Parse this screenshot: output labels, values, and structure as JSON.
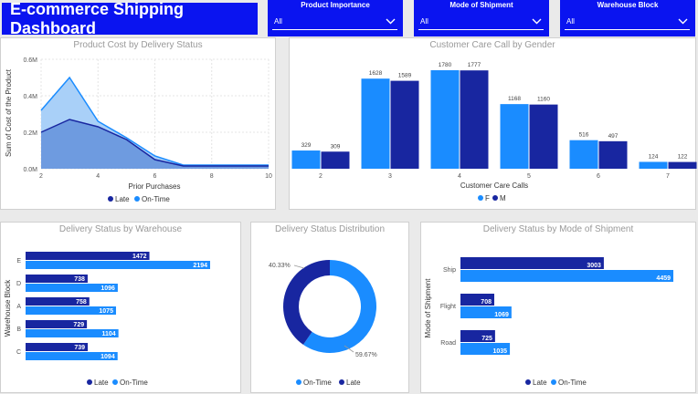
{
  "header": {
    "title": "E-commerce Shipping Dashboard"
  },
  "filters": [
    {
      "label": "Product Importance",
      "value": "All"
    },
    {
      "label": "Mode of Shipment",
      "value": "All"
    },
    {
      "label": "Warehouse Block",
      "value": "All"
    }
  ],
  "colors": {
    "late": "#1826a0",
    "on_time": "#1a8cff",
    "area_on_time": "#a9d0f8",
    "area_late": "#6e9be0"
  },
  "charts": {
    "cost": {
      "title": "Product Cost by Delivery Status",
      "xlabel": "Prior Purchases",
      "ylabel": "Sum of Cost of the Product",
      "legend": [
        "Late",
        "On-Time"
      ]
    },
    "care": {
      "title": "Customer Care Call by Gender",
      "xlabel": "Customer Care Calls",
      "legend": [
        "F",
        "M"
      ]
    },
    "warehouse": {
      "title": "Delivery Status by Warehouse",
      "ylabel": "Warehouse Block",
      "legend": [
        "Late",
        "On-Time"
      ]
    },
    "donut": {
      "title": "Delivery Status Distribution",
      "legend": [
        "On-Time",
        "Late"
      ],
      "labels": [
        "40.33%",
        "59.67%"
      ]
    },
    "mode": {
      "title": "Delivery Status by Mode of Shipment",
      "ylabel": "Mode of Shipment",
      "legend": [
        "Late",
        "On-Time"
      ]
    }
  },
  "chart_data": [
    {
      "type": "area",
      "title": "Product Cost by Delivery Status",
      "xlabel": "Prior Purchases",
      "ylabel": "Sum of Cost of the Product",
      "x": [
        2,
        3,
        4,
        5,
        6,
        7,
        8,
        9,
        10
      ],
      "x_ticks": [
        "2",
        "4",
        "6",
        "8",
        "10"
      ],
      "y_ticks": [
        "0.0M",
        "0.2M",
        "0.4M",
        "0.6M"
      ],
      "ylim": [
        0,
        0.6
      ],
      "series": [
        {
          "name": "On-Time",
          "values": [
            0.32,
            0.5,
            0.26,
            0.17,
            0.07,
            0.02,
            0.02,
            0.02,
            0.02
          ]
        },
        {
          "name": "Late",
          "values": [
            0.2,
            0.27,
            0.23,
            0.16,
            0.05,
            0.015,
            0.015,
            0.015,
            0.015
          ]
        }
      ],
      "legend": "bottom",
      "grid": true
    },
    {
      "type": "bar",
      "title": "Customer Care Call by Gender",
      "xlabel": "Customer Care Calls",
      "categories": [
        "2",
        "3",
        "4",
        "5",
        "6",
        "7"
      ],
      "series": [
        {
          "name": "F",
          "values": [
            329,
            1628,
            1780,
            1168,
            516,
            124
          ]
        },
        {
          "name": "M",
          "values": [
            309,
            1589,
            1777,
            1160,
            497,
            122
          ]
        }
      ],
      "legend": "bottom"
    },
    {
      "type": "bar",
      "orientation": "horizontal",
      "title": "Delivery Status by Warehouse",
      "ylabel": "Warehouse Block",
      "categories": [
        "E",
        "D",
        "A",
        "B",
        "C"
      ],
      "series": [
        {
          "name": "Late",
          "values": [
            1472,
            738,
            758,
            729,
            739
          ]
        },
        {
          "name": "On-Time",
          "values": [
            2194,
            1096,
            1075,
            1104,
            1094
          ]
        }
      ],
      "legend": "bottom"
    },
    {
      "type": "pie",
      "donut": true,
      "title": "Delivery Status Distribution",
      "categories": [
        "On-Time",
        "Late"
      ],
      "values": [
        59.67,
        40.33
      ],
      "legend": "bottom"
    },
    {
      "type": "bar",
      "orientation": "horizontal",
      "title": "Delivery Status by Mode of Shipment",
      "ylabel": "Mode of Shipment",
      "categories": [
        "Ship",
        "Flight",
        "Road"
      ],
      "series": [
        {
          "name": "Late",
          "values": [
            3003,
            708,
            725
          ]
        },
        {
          "name": "On-Time",
          "values": [
            4459,
            1069,
            1035
          ]
        }
      ],
      "legend": "bottom"
    }
  ]
}
